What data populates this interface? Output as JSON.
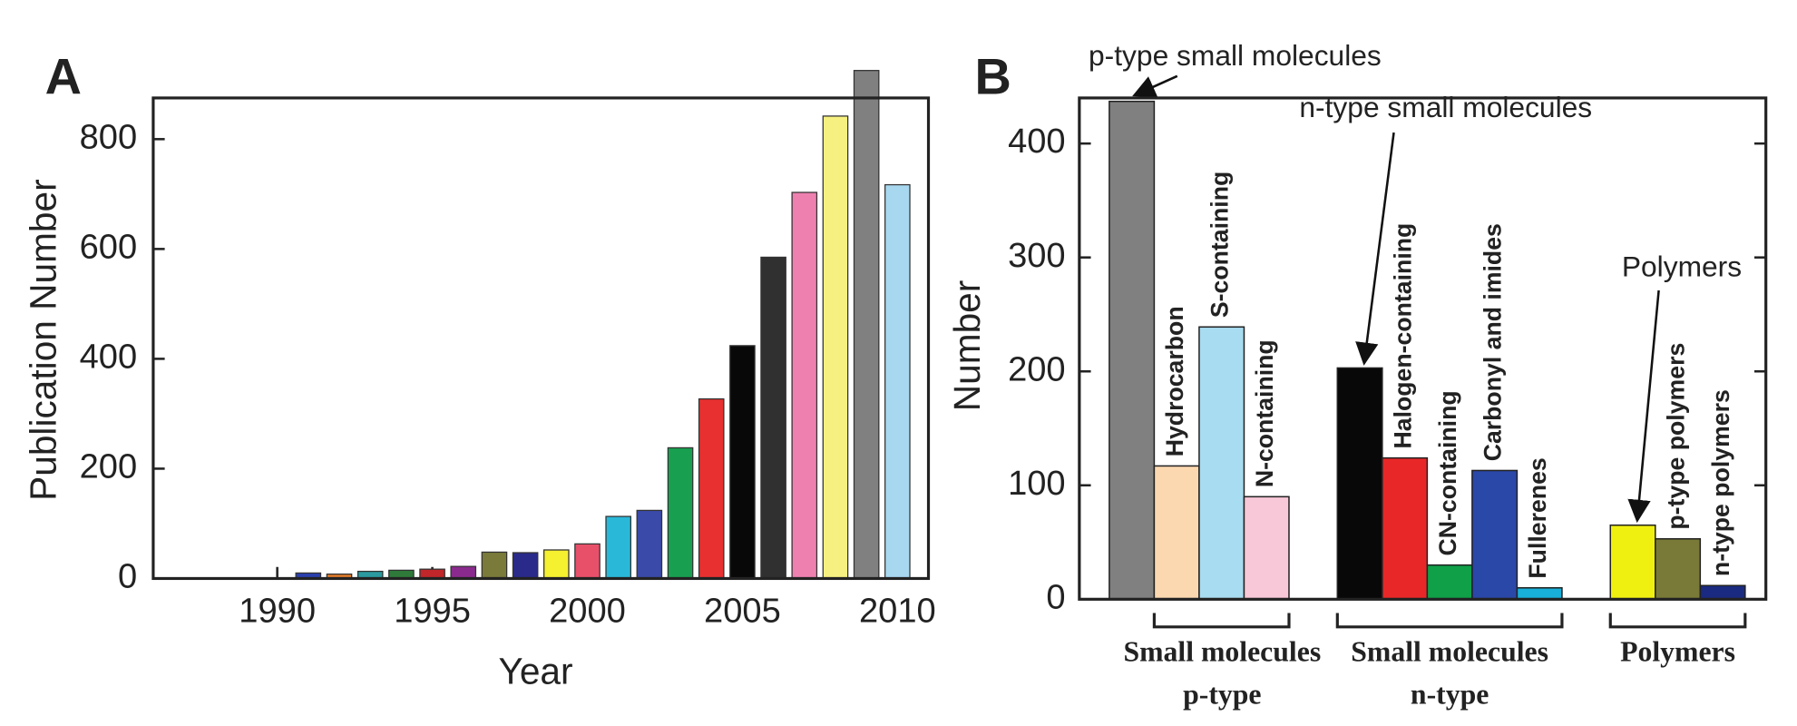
{
  "chart_data": [
    {
      "type": "bar",
      "panel": "A",
      "x_label": "Year",
      "y_label": "Publication Number",
      "x": [
        1991,
        1992,
        1993,
        1994,
        1995,
        1996,
        1997,
        1998,
        1999,
        2000,
        2001,
        2002,
        2003,
        2004,
        2005,
        2006,
        2007,
        2008,
        2009,
        2010
      ],
      "values": [
        10,
        8,
        13,
        15,
        17,
        22,
        48,
        47,
        52,
        63,
        113,
        124,
        238,
        327,
        424,
        585,
        703,
        842,
        925,
        717
      ],
      "colors": [
        "#2a3fae",
        "#e07b2a",
        "#2a9aa0",
        "#2f7a3a",
        "#c0262a",
        "#8b2a8e",
        "#7a7a3a",
        "#2a2a8a",
        "#f5f030",
        "#e8506a",
        "#2ab8d8",
        "#3a4aa8",
        "#18a050",
        "#e83030",
        "#080808",
        "#303030",
        "#ee80b0",
        "#f5f080",
        "#808080",
        "#a8d8f0"
      ],
      "xlim": [
        1986,
        2011
      ],
      "xticks": [
        1990,
        1995,
        2000,
        2005,
        2010
      ],
      "ylim": [
        0,
        875
      ],
      "yticks": [
        0,
        200,
        400,
        600,
        800
      ]
    },
    {
      "type": "grouped-bar",
      "panel": "B",
      "y_label": "Number",
      "ylim": [
        0,
        440
      ],
      "yticks": [
        0,
        100,
        200,
        300,
        400
      ],
      "groups": [
        {
          "label": "Small molecules",
          "sublabel": "p-type",
          "categories": [
            "p-type small molecules",
            "Hydrocarbon",
            "S-containing",
            "N-containing"
          ],
          "values": [
            437,
            117,
            239,
            90
          ],
          "colors": [
            "#808080",
            "#fcd8b0",
            "#a8dcf0",
            "#f8c8d8"
          ]
        },
        {
          "label": "Small molecules",
          "sublabel": "n-type",
          "categories": [
            "n-type small molecules",
            "Halogen-containing",
            "CN-containing",
            "Carbonyl and imides",
            "Fullerenes"
          ],
          "values": [
            203,
            124,
            30,
            113,
            10
          ],
          "colors": [
            "#080808",
            "#e82828",
            "#10a048",
            "#2a48a8",
            "#18b0d8"
          ]
        },
        {
          "label": "Polymers",
          "categories": [
            "Polymers",
            "p-type polymers",
            "n-type polymers"
          ],
          "values": [
            65,
            53,
            12
          ],
          "colors": [
            "#f0f010",
            "#7a7a38",
            "#1a2a80"
          ]
        }
      ]
    }
  ]
}
